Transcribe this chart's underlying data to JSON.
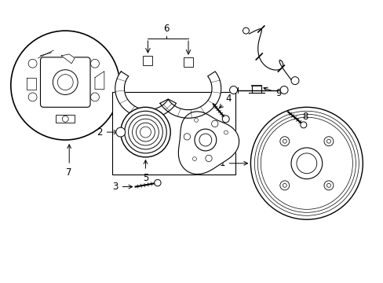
{
  "bg_color": "#ffffff",
  "line_color": "#000000",
  "fig_width": 4.89,
  "fig_height": 3.6,
  "dpi": 100,
  "label_fontsize": 8.5
}
